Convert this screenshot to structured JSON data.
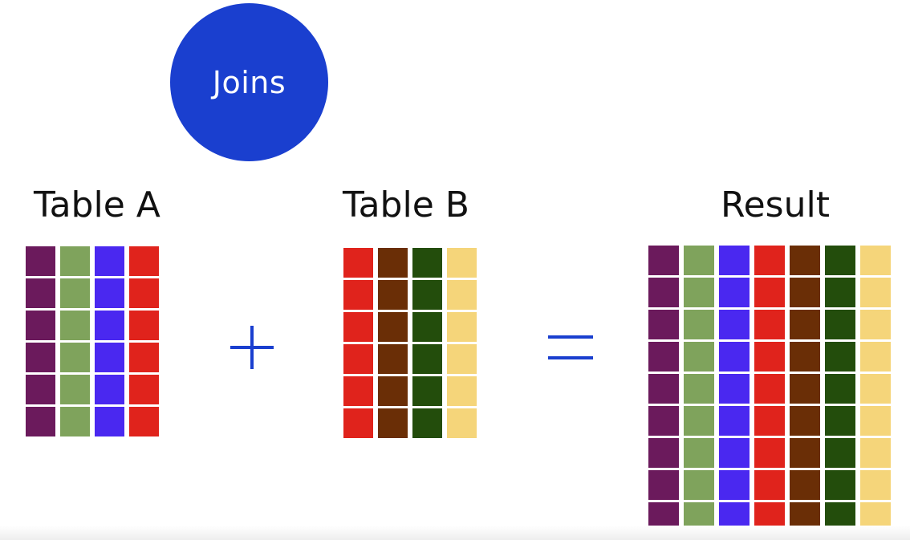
{
  "badge": {
    "label": "Joins",
    "color": "#1a3fcf"
  },
  "tables": {
    "a": {
      "label": "Table A",
      "rows": 6,
      "colors": [
        "#6b1a5c",
        "#7fa35c",
        "#4a28f0",
        "#e0231c"
      ]
    },
    "b": {
      "label": "Table B",
      "rows": 6,
      "colors": [
        "#e0231c",
        "#6a2e06",
        "#234d0c",
        "#f5d57a"
      ]
    },
    "result": {
      "label": "Result",
      "rows": 9,
      "colors": [
        "#6b1a5c",
        "#7fa35c",
        "#4a28f0",
        "#e0231c",
        "#6a2e06",
        "#234d0c",
        "#f5d57a"
      ]
    }
  },
  "operators": {
    "plus": "plus-sign",
    "equals": "equals-sign",
    "color": "#1a3fcf"
  }
}
